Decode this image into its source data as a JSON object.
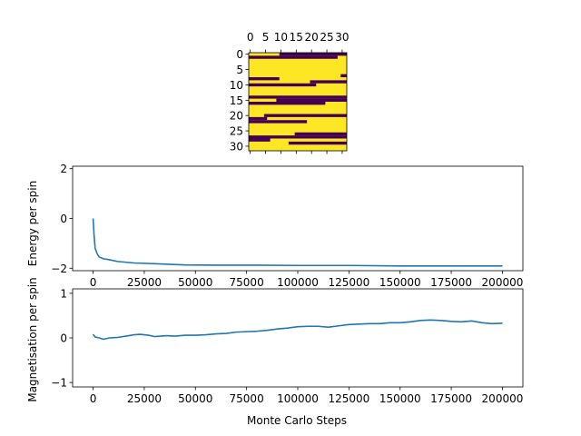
{
  "chart_data": [
    {
      "type": "heatmap",
      "colors": {
        "high": "#fde725",
        "low": "#440154"
      },
      "x_ticks": [
        "0",
        "5",
        "10",
        "15",
        "20",
        "25",
        "30"
      ],
      "y_ticks": [
        "0",
        "5",
        "10",
        "15",
        "20",
        "25",
        "30"
      ],
      "grid_size": [
        32,
        32
      ],
      "rows": [
        {
          "row": 0,
          "low_start": 10,
          "low_end": 31
        },
        {
          "row": 1,
          "low_start": 0,
          "low_end": 28
        },
        {
          "row": 7,
          "low_start": 30,
          "low_end": 31
        },
        {
          "row": 8,
          "low_start": 0,
          "low_end": 9
        },
        {
          "row": 9,
          "low_start": 20,
          "low_end": 31
        },
        {
          "row": 10,
          "low_start": 0,
          "low_end": 21
        },
        {
          "row": 14,
          "low_start": 0,
          "low_end": 31
        },
        {
          "row": 15,
          "low_start": 9,
          "low_end": 31
        },
        {
          "row": 16,
          "low_start": 0,
          "low_end": 24
        },
        {
          "row": 20,
          "low_start": 5,
          "low_end": 31
        },
        {
          "row": 21,
          "low_start": 0,
          "low_end": 5
        },
        {
          "row": 22,
          "low_start": 0,
          "low_end": 18
        },
        {
          "row": 26,
          "low_start": 15,
          "low_end": 31
        },
        {
          "row": 27,
          "low_start": 0,
          "low_end": 31
        },
        {
          "row": 28,
          "low_start": 0,
          "low_end": 6
        },
        {
          "row": 29,
          "low_start": 13,
          "low_end": 31
        }
      ]
    },
    {
      "type": "line",
      "ylabel": "Energy per spin",
      "xlim": [
        -10000,
        210000
      ],
      "ylim": [
        -2.1,
        2.1
      ],
      "x_ticks": [
        0,
        25000,
        50000,
        75000,
        100000,
        125000,
        150000,
        175000,
        200000
      ],
      "y_ticks": [
        -2,
        0,
        2
      ],
      "color": "#1f77b4",
      "x": [
        0,
        500,
        1000,
        2000,
        3000,
        5000,
        8000,
        12000,
        20000,
        30000,
        45000,
        60000,
        80000,
        100000,
        125000,
        150000,
        175000,
        200000
      ],
      "y": [
        0,
        -0.7,
        -1.2,
        -1.42,
        -1.55,
        -1.62,
        -1.66,
        -1.73,
        -1.79,
        -1.82,
        -1.87,
        -1.88,
        -1.88,
        -1.89,
        -1.89,
        -1.91,
        -1.91,
        -1.91
      ]
    },
    {
      "type": "line",
      "xlabel": "Monte Carlo Steps",
      "ylabel": "Magnetisation per spin",
      "xlim": [
        -10000,
        210000
      ],
      "ylim": [
        -1.1,
        1.1
      ],
      "x_ticks": [
        0,
        25000,
        50000,
        75000,
        100000,
        125000,
        150000,
        175000,
        200000
      ],
      "y_ticks": [
        -1,
        0,
        1
      ],
      "color": "#1f77b4",
      "x": [
        0,
        1000,
        3000,
        5000,
        8000,
        12000,
        16000,
        20000,
        23000,
        27000,
        30000,
        33000,
        36000,
        40000,
        45000,
        50000,
        55000,
        60000,
        65000,
        70000,
        75000,
        80000,
        85000,
        90000,
        95000,
        100000,
        105000,
        110000,
        115000,
        120000,
        125000,
        130000,
        135000,
        140000,
        145000,
        150000,
        155000,
        160000,
        165000,
        170000,
        175000,
        180000,
        185000,
        190000,
        195000,
        200000
      ],
      "y": [
        0.08,
        0.02,
        0.0,
        -0.03,
        0.0,
        0.01,
        0.04,
        0.07,
        0.08,
        0.06,
        0.03,
        0.04,
        0.05,
        0.04,
        0.06,
        0.06,
        0.07,
        0.09,
        0.1,
        0.13,
        0.14,
        0.15,
        0.17,
        0.2,
        0.22,
        0.25,
        0.26,
        0.26,
        0.24,
        0.27,
        0.3,
        0.31,
        0.32,
        0.32,
        0.34,
        0.34,
        0.36,
        0.39,
        0.4,
        0.39,
        0.37,
        0.36,
        0.38,
        0.34,
        0.32,
        0.33
      ]
    }
  ]
}
